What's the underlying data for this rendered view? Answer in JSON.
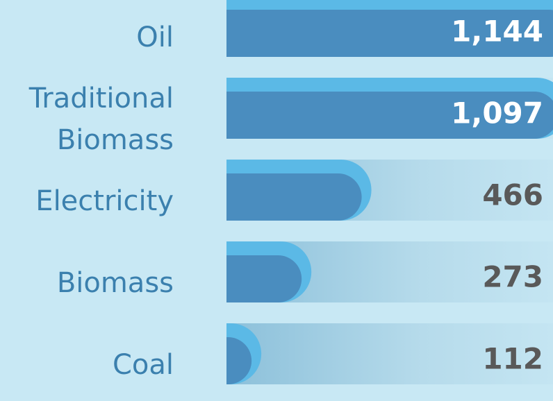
{
  "chart_data": {
    "type": "bar",
    "orientation": "horizontal",
    "categories": [
      "Oil",
      "Traditional Biomass",
      "Electricity",
      "Biomass",
      "Coal"
    ],
    "values": [
      1144,
      1097,
      466,
      273,
      112
    ],
    "value_labels": [
      "1,144",
      "1,097",
      "466",
      "273",
      "112"
    ],
    "color": "#4a8dbf",
    "xlim": [
      0,
      1050
    ]
  }
}
